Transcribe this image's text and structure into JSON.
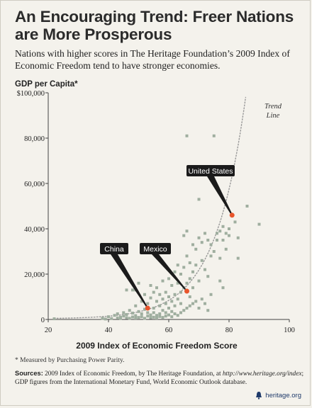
{
  "header": {
    "title_line1": "An Encouraging Trend: Freer Nations",
    "title_line2": "are More Prosperous",
    "subtitle": "Nations with higher scores in The Heritage Foundation’s 2009 Index of Economic Freedom tend to have stronger economies."
  },
  "footer": {
    "footnote": "* Measured by Purchasing Power Parity.",
    "sources_lead": "Sources:",
    "sources_text1": " 2009 Index of Economic Freedom, by The Heritage Foundation, at ",
    "sources_url": "http://www.heritage.org/index",
    "sources_text2": "; GDP figures from the International Monetary Fund, World Economic Outlook database.",
    "brand": "heritage.org"
  },
  "colors": {
    "background": "#f4f2ec",
    "points": "#9fae9f",
    "highlight": "#e8552b",
    "callout": "#1b1b1b",
    "trend": "#999999",
    "axis": "#444444"
  },
  "chart_data": {
    "type": "scatter",
    "xlabel": "2009 Index of Economic Freedom Score",
    "ylabel": "GDP per Capita*",
    "xlim": [
      20,
      100
    ],
    "ylim": [
      0,
      100000
    ],
    "x_ticks": [
      "20",
      "40",
      "60",
      "80",
      "100"
    ],
    "y_ticks": [
      "0",
      "20,000",
      "40,000",
      "60,000",
      "80,000",
      "$100,000"
    ],
    "grid": false,
    "trend_label_line1": "Trend",
    "trend_label_line2": "Line",
    "highlighted": [
      {
        "name": "China",
        "x": 53,
        "y": 5000
      },
      {
        "name": "Mexico",
        "x": 66,
        "y": 12500
      },
      {
        "name": "United States",
        "x": 81,
        "y": 46000
      }
    ],
    "points": [
      [
        22,
        300
      ],
      [
        38,
        500
      ],
      [
        39,
        200
      ],
      [
        40,
        1200
      ],
      [
        41,
        400
      ],
      [
        42,
        1800
      ],
      [
        43,
        700
      ],
      [
        43,
        2500
      ],
      [
        44,
        1000
      ],
      [
        44,
        400
      ],
      [
        45,
        1500
      ],
      [
        45,
        3000
      ],
      [
        46,
        800
      ],
      [
        46,
        13000
      ],
      [
        46,
        2200
      ],
      [
        47,
        500
      ],
      [
        47,
        4000
      ],
      [
        48,
        1100
      ],
      [
        48,
        13000
      ],
      [
        48,
        2800
      ],
      [
        49,
        600
      ],
      [
        49,
        6000
      ],
      [
        49,
        1700
      ],
      [
        49,
        13000
      ],
      [
        50,
        900
      ],
      [
        50,
        3500
      ],
      [
        50,
        16000
      ],
      [
        51,
        1200
      ],
      [
        51,
        8000
      ],
      [
        51,
        2500
      ],
      [
        52,
        500
      ],
      [
        52,
        4500
      ],
      [
        52,
        11000
      ],
      [
        53,
        1500
      ],
      [
        53,
        7000
      ],
      [
        53,
        3000
      ],
      [
        54,
        800
      ],
      [
        54,
        9500
      ],
      [
        54,
        2000
      ],
      [
        54,
        15000
      ],
      [
        55,
        1000
      ],
      [
        55,
        5000
      ],
      [
        55,
        12000
      ],
      [
        55,
        3000
      ],
      [
        56,
        600
      ],
      [
        56,
        8000
      ],
      [
        56,
        1800
      ],
      [
        56,
        14000
      ],
      [
        57,
        1300
      ],
      [
        57,
        6000
      ],
      [
        57,
        11000
      ],
      [
        57,
        2500
      ],
      [
        58,
        900
      ],
      [
        58,
        4000
      ],
      [
        58,
        17000
      ],
      [
        58,
        9000
      ],
      [
        59,
        1500
      ],
      [
        59,
        7000
      ],
      [
        59,
        12000
      ],
      [
        59,
        3000
      ],
      [
        60,
        2000
      ],
      [
        60,
        10000
      ],
      [
        60,
        18000
      ],
      [
        60,
        5000
      ],
      [
        61,
        1200
      ],
      [
        61,
        8000
      ],
      [
        61,
        15000
      ],
      [
        61,
        3500
      ],
      [
        62,
        2500
      ],
      [
        62,
        11000
      ],
      [
        62,
        21000
      ],
      [
        62,
        6000
      ],
      [
        63,
        1800
      ],
      [
        63,
        9000
      ],
      [
        63,
        16000
      ],
      [
        63,
        24000
      ],
      [
        64,
        3000
      ],
      [
        64,
        12000
      ],
      [
        64,
        20000
      ],
      [
        64,
        7000
      ],
      [
        65,
        4000
      ],
      [
        65,
        14000
      ],
      [
        65,
        23000
      ],
      [
        65,
        37000
      ],
      [
        66,
        5000
      ],
      [
        66,
        16000
      ],
      [
        66,
        28000
      ],
      [
        66,
        39000
      ],
      [
        66,
        81000
      ],
      [
        67,
        6000
      ],
      [
        67,
        18000
      ],
      [
        67,
        25000
      ],
      [
        67,
        10000
      ],
      [
        68,
        7000
      ],
      [
        68,
        21000
      ],
      [
        68,
        14000
      ],
      [
        68,
        33000
      ],
      [
        69,
        8000
      ],
      [
        69,
        24000
      ],
      [
        69,
        31000
      ],
      [
        70,
        5000
      ],
      [
        70,
        17000
      ],
      [
        70,
        36000
      ],
      [
        70,
        53000
      ],
      [
        71,
        9000
      ],
      [
        71,
        26000
      ],
      [
        71,
        34000
      ],
      [
        72,
        7000
      ],
      [
        72,
        22000
      ],
      [
        72,
        38000
      ],
      [
        73,
        4000
      ],
      [
        73,
        19000
      ],
      [
        73,
        35000
      ],
      [
        74,
        11000
      ],
      [
        74,
        28000
      ],
      [
        74,
        33000
      ],
      [
        75,
        30000
      ],
      [
        75,
        81000
      ],
      [
        76,
        38000
      ],
      [
        76,
        35000
      ],
      [
        77,
        27000
      ],
      [
        77,
        39000
      ],
      [
        77,
        17000
      ],
      [
        78,
        35000
      ],
      [
        78,
        41000
      ],
      [
        78,
        14000
      ],
      [
        79,
        38000
      ],
      [
        79,
        31000
      ],
      [
        80,
        40000
      ],
      [
        80,
        37000
      ],
      [
        82,
        43000
      ],
      [
        83,
        36000
      ],
      [
        83,
        27000
      ],
      [
        86,
        50000
      ],
      [
        90,
        42000
      ]
    ]
  }
}
